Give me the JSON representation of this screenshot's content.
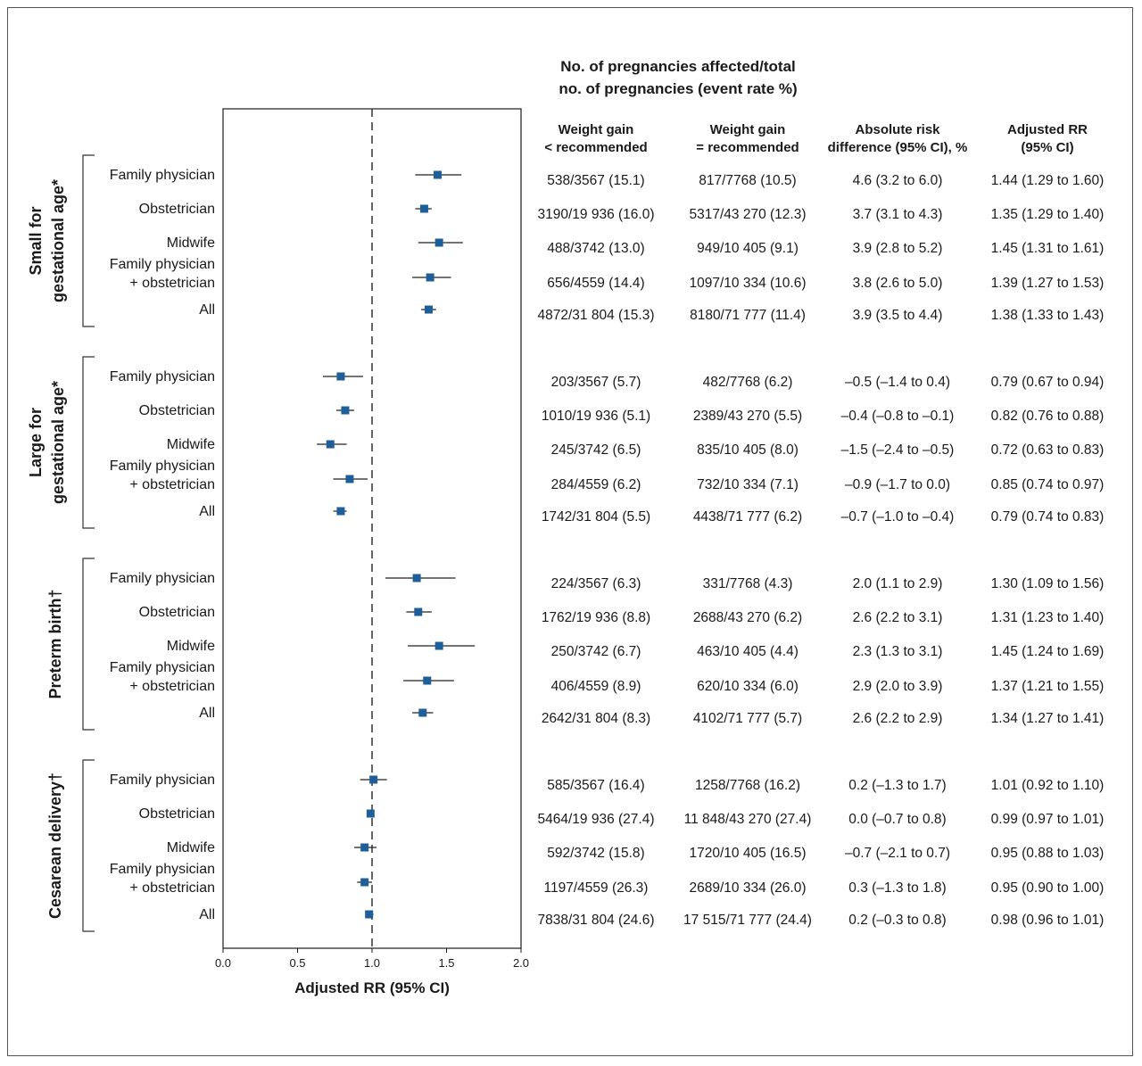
{
  "chart_data": {
    "type": "forest",
    "main_header": [
      "No. of pregnancies affected/total",
      "no. of pregnancies (event rate %)"
    ],
    "column_headers": [
      [
        "Weight gain",
        "< recommended"
      ],
      [
        "Weight gain",
        "= recommended"
      ],
      [
        "Absolute risk",
        "difference (95% CI), %"
      ],
      [
        "Adjusted RR",
        "(95% CI)"
      ]
    ],
    "xlabel": "Adjusted RR (95% CI)",
    "xlim": [
      0.0,
      2.0
    ],
    "xticks": [
      "0.0",
      "0.5",
      "1.0",
      "1.5",
      "2.0"
    ],
    "reference_line": 1.0,
    "marker_color": "#1f5f99",
    "groups": [
      {
        "label_lines": [
          "Small for",
          "gestational age*"
        ],
        "rows": [
          {
            "label": [
              "Family physician"
            ],
            "rr": 1.44,
            "lo": 1.29,
            "hi": 1.6,
            "c1": "538/3567 (15.1)",
            "c2": "817/7768 (10.5)",
            "c3": "4.6 (3.2 to 6.0)",
            "c4": "1.44 (1.29 to 1.60)"
          },
          {
            "label": [
              "Obstetrician"
            ],
            "rr": 1.35,
            "lo": 1.29,
            "hi": 1.4,
            "c1": "3190/19 936 (16.0)",
            "c2": "5317/43 270 (12.3)",
            "c3": "3.7 (3.1 to 4.3)",
            "c4": "1.35 (1.29 to 1.40)"
          },
          {
            "label": [
              "Midwife"
            ],
            "rr": 1.45,
            "lo": 1.31,
            "hi": 1.61,
            "c1": "488/3742 (13.0)",
            "c2": "949/10 405 (9.1)",
            "c3": "3.9 (2.8 to 5.2)",
            "c4": "1.45 (1.31 to 1.61)"
          },
          {
            "label": [
              "Family physician",
              "+ obstetrician"
            ],
            "rr": 1.39,
            "lo": 1.27,
            "hi": 1.53,
            "c1": "656/4559 (14.4)",
            "c2": "1097/10 334 (10.6)",
            "c3": "3.8 (2.6 to 5.0)",
            "c4": "1.39 (1.27 to 1.53)"
          },
          {
            "label": [
              "All"
            ],
            "rr": 1.38,
            "lo": 1.33,
            "hi": 1.43,
            "c1": "4872/31 804 (15.3)",
            "c2": "8180/71 777 (11.4)",
            "c3": "3.9 (3.5 to 4.4)",
            "c4": "1.38 (1.33 to 1.43)"
          }
        ]
      },
      {
        "label_lines": [
          "Large for",
          "gestational age*"
        ],
        "rows": [
          {
            "label": [
              "Family physician"
            ],
            "rr": 0.79,
            "lo": 0.67,
            "hi": 0.94,
            "c1": "203/3567 (5.7)",
            "c2": "482/7768 (6.2)",
            "c3": "–0.5 (–1.4 to 0.4)",
            "c4": "0.79 (0.67 to 0.94)"
          },
          {
            "label": [
              "Obstetrician"
            ],
            "rr": 0.82,
            "lo": 0.76,
            "hi": 0.88,
            "c1": "1010/19 936 (5.1)",
            "c2": "2389/43 270 (5.5)",
            "c3": "–0.4 (–0.8 to –0.1)",
            "c4": "0.82 (0.76 to 0.88)"
          },
          {
            "label": [
              "Midwife"
            ],
            "rr": 0.72,
            "lo": 0.63,
            "hi": 0.83,
            "c1": "245/3742 (6.5)",
            "c2": "835/10 405 (8.0)",
            "c3": "–1.5 (–2.4 to –0.5)",
            "c4": "0.72 (0.63 to 0.83)"
          },
          {
            "label": [
              "Family physician",
              "+ obstetrician"
            ],
            "rr": 0.85,
            "lo": 0.74,
            "hi": 0.97,
            "c1": "284/4559 (6.2)",
            "c2": "732/10 334 (7.1)",
            "c3": "–0.9 (–1.7 to 0.0)",
            "c4": "0.85 (0.74 to 0.97)"
          },
          {
            "label": [
              "All"
            ],
            "rr": 0.79,
            "lo": 0.74,
            "hi": 0.83,
            "c1": "1742/31 804 (5.5)",
            "c2": "4438/71 777 (6.2)",
            "c3": "–0.7 (–1.0 to –0.4)",
            "c4": "0.79 (0.74 to 0.83)"
          }
        ]
      },
      {
        "label_lines": [
          "Preterm birth†"
        ],
        "rows": [
          {
            "label": [
              "Family physician"
            ],
            "rr": 1.3,
            "lo": 1.09,
            "hi": 1.56,
            "c1": "224/3567 (6.3)",
            "c2": "331/7768 (4.3)",
            "c3": "2.0 (1.1 to 2.9)",
            "c4": "1.30 (1.09 to 1.56)"
          },
          {
            "label": [
              "Obstetrician"
            ],
            "rr": 1.31,
            "lo": 1.23,
            "hi": 1.4,
            "c1": "1762/19 936 (8.8)",
            "c2": "2688/43 270 (6.2)",
            "c3": "2.6 (2.2 to 3.1)",
            "c4": "1.31 (1.23 to 1.40)"
          },
          {
            "label": [
              "Midwife"
            ],
            "rr": 1.45,
            "lo": 1.24,
            "hi": 1.69,
            "c1": "250/3742 (6.7)",
            "c2": "463/10 405 (4.4)",
            "c3": "2.3 (1.3 to 3.1)",
            "c4": "1.45 (1.24 to 1.69)"
          },
          {
            "label": [
              "Family physician",
              "+ obstetrician"
            ],
            "rr": 1.37,
            "lo": 1.21,
            "hi": 1.55,
            "c1": "406/4559 (8.9)",
            "c2": "620/10 334 (6.0)",
            "c3": "2.9 (2.0 to 3.9)",
            "c4": "1.37 (1.21 to 1.55)"
          },
          {
            "label": [
              "All"
            ],
            "rr": 1.34,
            "lo": 1.27,
            "hi": 1.41,
            "c1": "2642/31 804 (8.3)",
            "c2": "4102/71 777 (5.7)",
            "c3": "2.6 (2.2 to 2.9)",
            "c4": "1.34 (1.27 to 1.41)"
          }
        ]
      },
      {
        "label_lines": [
          "Cesarean delivery†"
        ],
        "rows": [
          {
            "label": [
              "Family physician"
            ],
            "rr": 1.01,
            "lo": 0.92,
            "hi": 1.1,
            "c1": "585/3567 (16.4)",
            "c2": "1258/7768 (16.2)",
            "c3": "0.2 (–1.3 to 1.7)",
            "c4": "1.01 (0.92 to 1.10)"
          },
          {
            "label": [
              "Obstetrician"
            ],
            "rr": 0.99,
            "lo": 0.97,
            "hi": 1.01,
            "c1": "5464/19 936 (27.4)",
            "c2": "11 848/43 270 (27.4)",
            "c3": "0.0 (–0.7 to 0.8)",
            "c4": "0.99 (0.97 to 1.01)"
          },
          {
            "label": [
              "Midwife"
            ],
            "rr": 0.95,
            "lo": 0.88,
            "hi": 1.03,
            "c1": "592/3742 (15.8)",
            "c2": "1720/10 405 (16.5)",
            "c3": "–0.7 (–2.1 to 0.7)",
            "c4": "0.95 (0.88 to 1.03)"
          },
          {
            "label": [
              "Family physician",
              "+ obstetrician"
            ],
            "rr": 0.95,
            "lo": 0.9,
            "hi": 1.0,
            "c1": "1197/4559 (26.3)",
            "c2": "2689/10 334 (26.0)",
            "c3": "0.3 (–1.3 to 1.8)",
            "c4": "0.95 (0.90 to 1.00)"
          },
          {
            "label": [
              "All"
            ],
            "rr": 0.98,
            "lo": 0.96,
            "hi": 1.01,
            "c1": "7838/31 804 (24.6)",
            "c2": "17 515/71 777 (24.4)",
            "c3": "0.2 (–0.3 to 0.8)",
            "c4": "0.98 (0.96 to 1.01)"
          }
        ]
      }
    ]
  }
}
